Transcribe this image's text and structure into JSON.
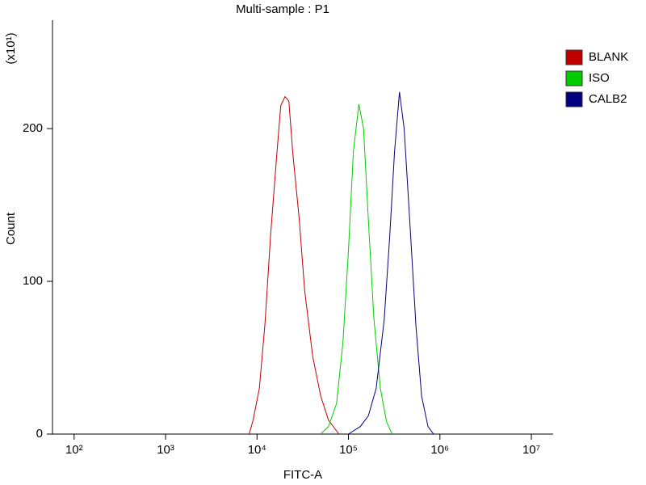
{
  "chart_data": {
    "type": "line",
    "title": "Multi-sample : P1",
    "x_label": "FITC-A",
    "y_label": "Count",
    "y_multiplier": "(x10¹)",
    "xscale": "log",
    "xlim": [
      58,
      17300000
    ],
    "ylim": [
      0,
      271
    ],
    "xticks": [
      {
        "value": 100,
        "label": "10²"
      },
      {
        "value": 1000,
        "label": "10³"
      },
      {
        "value": 10000,
        "label": "10⁴"
      },
      {
        "value": 100000,
        "label": "10⁵"
      },
      {
        "value": 1000000,
        "label": "10⁶"
      },
      {
        "value": 10000000,
        "label": "10⁷"
      }
    ],
    "yticks": [
      0,
      100,
      200
    ],
    "legend": "right",
    "series": [
      {
        "name": "BLANK",
        "color": "#c00000",
        "x": [
          8190,
          9060,
          10600,
          12200,
          14100,
          16500,
          18200,
          20200,
          22300,
          24600,
          28900,
          33200,
          40600,
          49600,
          60600,
          78700
        ],
        "values": [
          0,
          9,
          30,
          72,
          131,
          184,
          215,
          221,
          218,
          184,
          141,
          94,
          51,
          25,
          9,
          0
        ]
      },
      {
        "name": "ISO",
        "color": "#00cc00",
        "x": [
          49600,
          60600,
          74100,
          87000,
          100000,
          113000,
          130000,
          146000,
          165000,
          190000,
          223000,
          261000,
          301000
        ],
        "values": [
          0,
          5,
          20,
          60,
          120,
          185,
          216,
          200,
          140,
          75,
          30,
          8,
          0
        ]
      },
      {
        "name": "CALB2",
        "color": "#000080",
        "x": [
          100000,
          135000,
          165000,
          201000,
          246000,
          283000,
          319000,
          361000,
          406000,
          468000,
          548000,
          631000,
          741000,
          852000
        ],
        "values": [
          0,
          5,
          12,
          30,
          75,
          130,
          185,
          224,
          200,
          140,
          70,
          25,
          5,
          0
        ]
      }
    ]
  }
}
